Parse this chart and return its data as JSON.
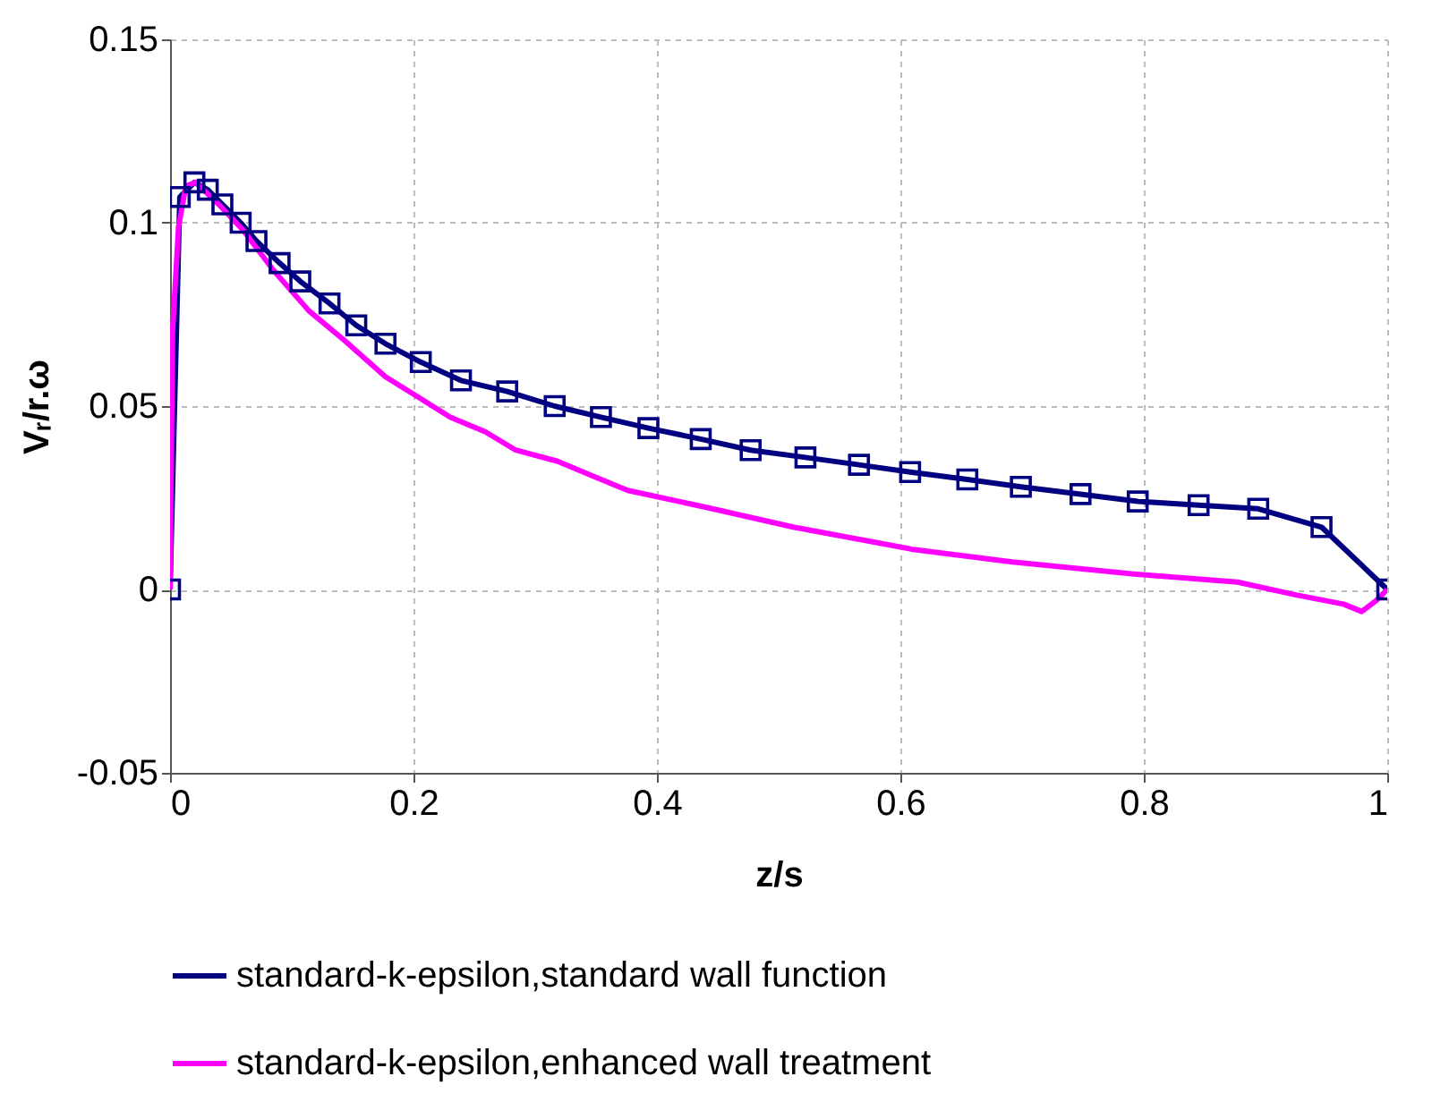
{
  "chart_data": {
    "type": "line",
    "xlabel": "z/s",
    "ylabel": "Vᵣ/r.ω",
    "xlim": [
      0,
      1
    ],
    "xticks": [
      0,
      0.2,
      0.4,
      0.6,
      0.8,
      1
    ],
    "ylim": [
      -0.05,
      0.15
    ],
    "yticks": [
      -0.05,
      0,
      0.05,
      0.1,
      0.15
    ],
    "grid": true,
    "legend": "bottom",
    "line_style": "solid",
    "series": [
      {
        "name": "standard-k-epsilon,standard wall function",
        "color": "#000080",
        "marker": "square",
        "x": [
          0,
          0.008,
          0.02,
          0.031,
          0.043,
          0.058,
          0.071,
          0.09,
          0.107,
          0.131,
          0.153,
          0.177,
          0.206,
          0.239,
          0.277,
          0.316,
          0.354,
          0.393,
          0.436,
          0.477,
          0.522,
          0.566,
          0.608,
          0.655,
          0.699,
          0.748,
          0.795,
          0.845,
          0.894,
          0.946,
          1
        ],
        "values": [
          0,
          0.107,
          0.111,
          0.109,
          0.105,
          0.1,
          0.095,
          0.089,
          0.084,
          0.078,
          0.072,
          0.067,
          0.062,
          0.057,
          0.054,
          0.05,
          0.047,
          0.044,
          0.041,
          0.038,
          0.036,
          0.034,
          0.032,
          0.03,
          0.028,
          0.026,
          0.024,
          0.023,
          0.022,
          0.017,
          0
        ]
      },
      {
        "name": "standard-k-epsilon,enhanced wall treatment",
        "color": "#ff00ff",
        "marker": "none",
        "x": [
          0,
          0.002,
          0.007,
          0.013,
          0.021,
          0.04,
          0.06,
          0.085,
          0.114,
          0.143,
          0.177,
          0.206,
          0.23,
          0.259,
          0.284,
          0.318,
          0.347,
          0.376,
          0.439,
          0.512,
          0.609,
          0.692,
          0.799,
          0.877,
          0.925,
          0.964,
          0.979,
          0.991,
          1
        ],
        "values": [
          0,
          0.07,
          0.099,
          0.11,
          0.111,
          0.105,
          0.098,
          0.087,
          0.076,
          0.068,
          0.058,
          0.052,
          0.047,
          0.043,
          0.038,
          0.035,
          0.031,
          0.027,
          0.0225,
          0.017,
          0.011,
          0.0075,
          0.004,
          0.002,
          -0.0015,
          -0.004,
          -0.006,
          -0.003,
          0
        ]
      }
    ]
  }
}
